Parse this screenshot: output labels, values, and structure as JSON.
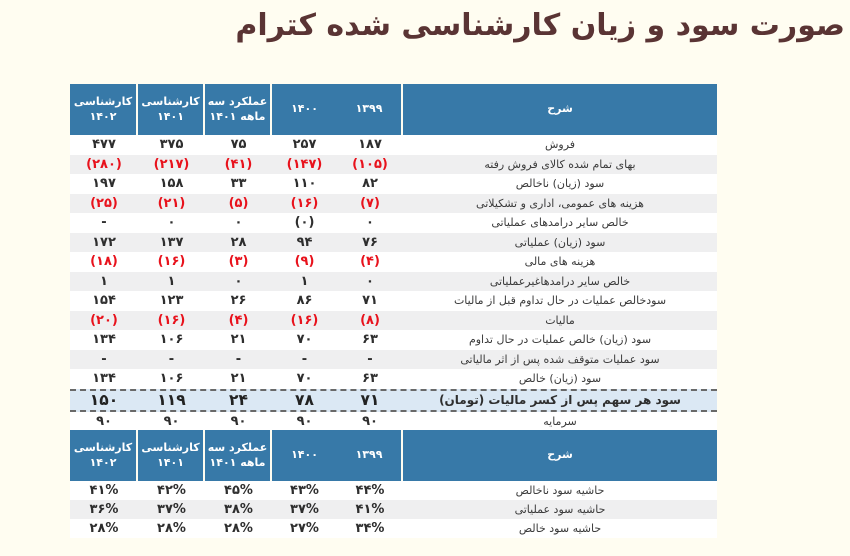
{
  "title": "صورت سود و زیان کارشناسی شده کترام",
  "colors": {
    "page_bg": "#fffdf1",
    "header_bg": "#3779a8",
    "alt_row_bg": "#efeff0",
    "eps_row_bg": "#dbe8f4",
    "negative_red": "#e8121c",
    "title_color": "#5a3434",
    "header_text": "#ffffff"
  },
  "columns": [
    "کارشناسی ۱۴۰۲",
    "کارشناسی ۱۴۰۱",
    "عملکرد سه ماهه ۱۴۰۱",
    "۱۴۰۰",
    "۱۳۹۹",
    "شرح"
  ],
  "income_statement": {
    "rows": [
      {
        "label": "فروش",
        "values": [
          "۴۷۷",
          "۳۷۵",
          "۷۵",
          "۲۵۷",
          "۱۸۷"
        ],
        "red": false,
        "eps": false
      },
      {
        "label": "بهای تمام شده کالای فروش رفته",
        "values": [
          "(۲۸۰)",
          "(۲۱۷)",
          "(۴۱)",
          "(۱۴۷)",
          "(۱۰۵)"
        ],
        "red": true,
        "eps": false
      },
      {
        "label": "سود (زیان) ناخالص",
        "values": [
          "۱۹۷",
          "۱۵۸",
          "۳۳",
          "۱۱۰",
          "۸۲"
        ],
        "red": false,
        "eps": false
      },
      {
        "label": "هزینه های عمومی، اداری و تشکیلاتی",
        "values": [
          "(۲۵)",
          "(۲۱)",
          "(۵)",
          "(۱۶)",
          "(۷)"
        ],
        "red": true,
        "eps": false
      },
      {
        "label": "خالص سایر درامدهای عملیاتی",
        "values": [
          "-",
          "۰",
          "۰",
          "(۰)",
          "۰"
        ],
        "red": false,
        "eps": false
      },
      {
        "label": "سود (زیان) عملیاتی",
        "values": [
          "۱۷۲",
          "۱۳۷",
          "۲۸",
          "۹۴",
          "۷۶"
        ],
        "red": false,
        "eps": false
      },
      {
        "label": "هزینه های مالی",
        "values": [
          "(۱۸)",
          "(۱۶)",
          "(۳)",
          "(۹)",
          "(۴)"
        ],
        "red": true,
        "eps": false
      },
      {
        "label": "خالص سایر درامدهاغیرعملیاتی",
        "values": [
          "۱",
          "۱",
          "۰",
          "۱",
          "۰"
        ],
        "red": false,
        "eps": false
      },
      {
        "label": "سودخالص عملیات در حال تداوم قبل از مالیات",
        "values": [
          "۱۵۴",
          "۱۲۳",
          "۲۶",
          "۸۶",
          "۷۱"
        ],
        "red": false,
        "eps": false
      },
      {
        "label": "مالیات",
        "values": [
          "(۲۰)",
          "(۱۶)",
          "(۴)",
          "(۱۶)",
          "(۸)"
        ],
        "red": true,
        "eps": false
      },
      {
        "label": "سود (زیان) خالص عملیات در حال تداوم",
        "values": [
          "۱۳۴",
          "۱۰۶",
          "۲۱",
          "۷۰",
          "۶۳"
        ],
        "red": false,
        "eps": false
      },
      {
        "label": "سود عملیات متوقف شده پس از اثر مالیاتی",
        "values": [
          "-",
          "-",
          "-",
          "-",
          "-"
        ],
        "red": false,
        "eps": false
      },
      {
        "label": "سود (زیان) خالص",
        "values": [
          "۱۳۴",
          "۱۰۶",
          "۲۱",
          "۷۰",
          "۶۳"
        ],
        "red": false,
        "eps": false
      },
      {
        "label": "سود هر سهم پس از کسر مالیات (تومان)",
        "values": [
          "۱۵۰",
          "۱۱۹",
          "۲۴",
          "۷۸",
          "۷۱"
        ],
        "red": false,
        "eps": true
      },
      {
        "label": "سرمایه",
        "values": [
          "۹۰",
          "۹۰",
          "۹۰",
          "۹۰",
          "۹۰"
        ],
        "red": false,
        "eps": false
      }
    ]
  },
  "margins": {
    "rows": [
      {
        "label": "حاشیه سود ناخالص",
        "values": [
          "۴۱%",
          "۴۲%",
          "۴۵%",
          "۴۳%",
          "۴۴%"
        ],
        "red": false,
        "eps": false
      },
      {
        "label": "حاشیه سود عملیاتی",
        "values": [
          "۳۶%",
          "۳۷%",
          "۳۸%",
          "۳۷%",
          "۴۱%"
        ],
        "red": false,
        "eps": false
      },
      {
        "label": "حاشیه سود خالص",
        "values": [
          "۲۸%",
          "۲۸%",
          "۲۸%",
          "۲۷%",
          "۳۴%"
        ],
        "red": false,
        "eps": false
      }
    ]
  }
}
